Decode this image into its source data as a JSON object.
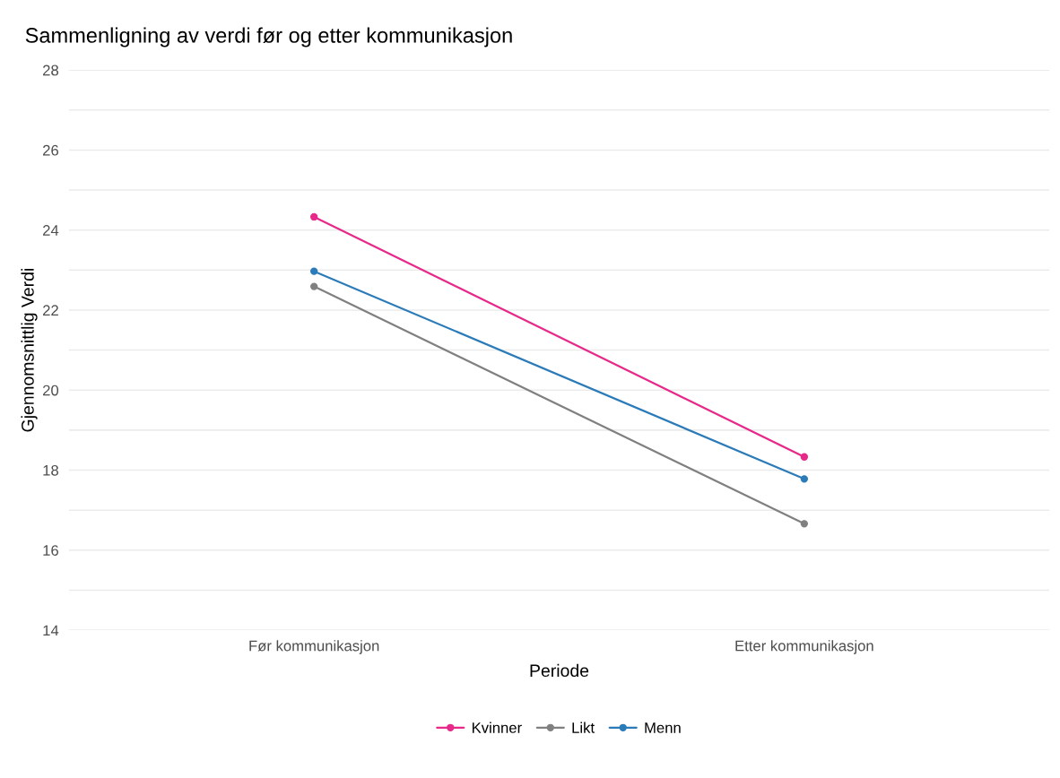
{
  "chart_data": {
    "type": "line",
    "title": "Sammenligning av verdi før og etter kommunikasjon",
    "xlabel": "Periode",
    "ylabel": "Gjennomsnittlig Verdi",
    "categories": [
      "Før kommunikasjon",
      "Etter kommunikasjon"
    ],
    "series": [
      {
        "name": "Kvinner",
        "color": "#e7298a",
        "values": [
          24.33,
          18.33
        ]
      },
      {
        "name": "Likt",
        "color": "#808080",
        "values": [
          22.59,
          16.66
        ]
      },
      {
        "name": "Menn",
        "color": "#2b7bb9",
        "values": [
          22.97,
          17.78
        ]
      }
    ],
    "ylim": [
      14,
      28
    ],
    "yticks": [
      14,
      {
        "value": 15,
        "label": null
      },
      16,
      {
        "value": 17,
        "label": null
      },
      18,
      {
        "value": 19,
        "label": null
      },
      20,
      {
        "value": 21,
        "label": null
      },
      22,
      {
        "value": 23,
        "label": null
      },
      24,
      {
        "value": 25,
        "label": null
      },
      26,
      {
        "value": 27,
        "label": null
      },
      28
    ],
    "grid": "y",
    "legend": "bottom",
    "marker": "circle",
    "line_style": "solid"
  }
}
